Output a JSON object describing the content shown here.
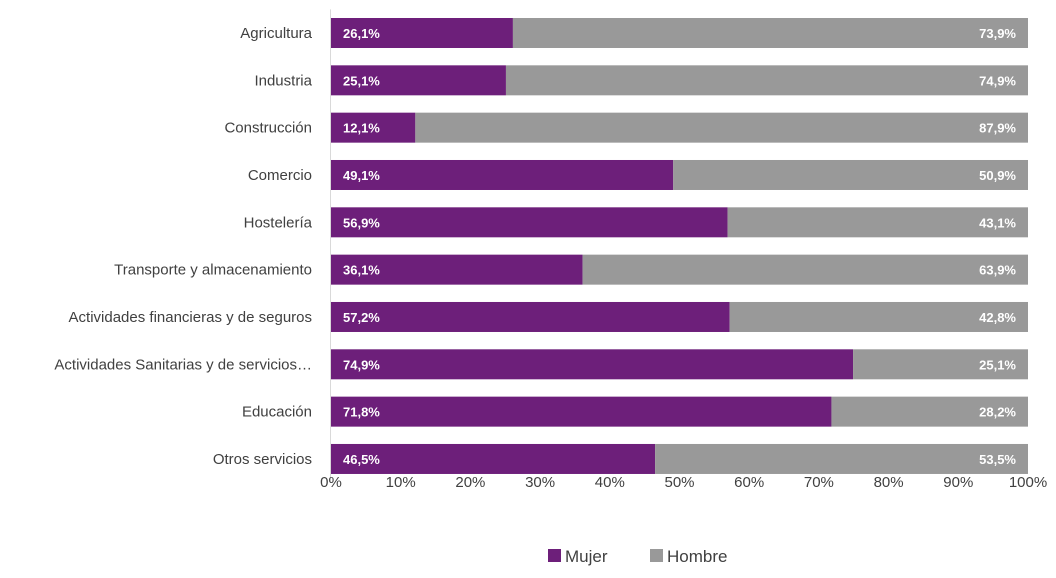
{
  "chart_data": {
    "type": "bar",
    "orientation": "horizontal",
    "stacked": "percent",
    "categories": [
      "Agricultura",
      "Industria",
      "Construcción",
      "Comercio",
      "Hostelería",
      "Transporte y almacenamiento",
      "Actividades financieras y de seguros",
      "Actividades Sanitarias y de servicios…",
      "Educación",
      "Otros servicios"
    ],
    "series": [
      {
        "name": "Mujer",
        "color": "#6d1f7a",
        "values": [
          26.1,
          25.1,
          12.1,
          49.1,
          56.9,
          36.1,
          57.2,
          74.9,
          71.8,
          46.5
        ],
        "labels": [
          "26,1%",
          "25,1%",
          "12,1%",
          "49,1%",
          "56,9%",
          "36,1%",
          "57,2%",
          "74,9%",
          "71,8%",
          "46,5%"
        ]
      },
      {
        "name": "Hombre",
        "color": "#999999",
        "values": [
          73.9,
          74.9,
          87.9,
          50.9,
          43.1,
          63.9,
          42.8,
          25.1,
          28.2,
          53.5
        ],
        "labels": [
          "73,9%",
          "74,9%",
          "87,9%",
          "50,9%",
          "43,1%",
          "63,9%",
          "42,8%",
          "25,1%",
          "28,2%",
          "53,5%"
        ]
      }
    ],
    "xlim": [
      0,
      100
    ],
    "x_ticks": [
      "0%",
      "10%",
      "20%",
      "30%",
      "40%",
      "50%",
      "60%",
      "70%",
      "80%",
      "90%",
      "100%"
    ],
    "grid": false,
    "legend": {
      "position": "bottom",
      "items": [
        "Mujer",
        "Hombre"
      ]
    }
  }
}
